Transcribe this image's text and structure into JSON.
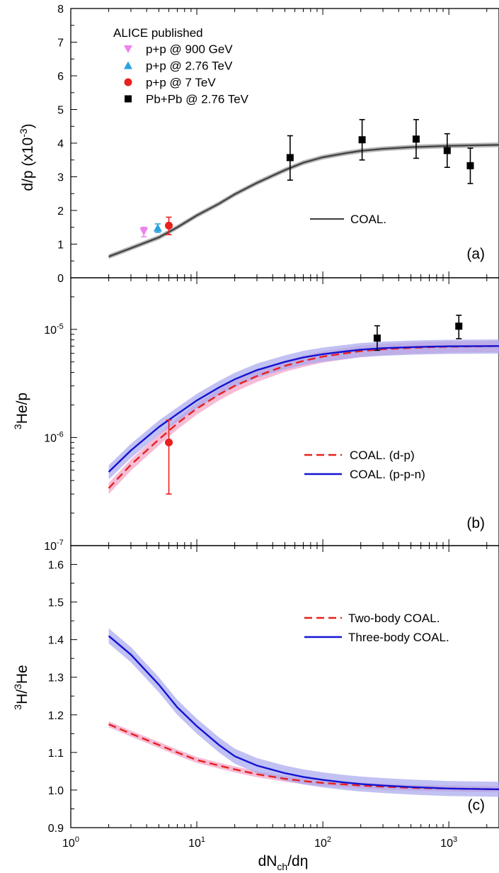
{
  "figure": {
    "xlabel": "dN_ch/dη",
    "xlabel_main": "dN",
    "xlabel_sub": "ch",
    "xlabel_tail": "/dη"
  },
  "chart_data": [
    {
      "type": "line",
      "panel": "(a)",
      "ylabel": "d/p  (x10^-3)",
      "ylabel_main": "d/p  (x10",
      "ylabel_sup": "-3",
      "ylabel_tail": ")",
      "x_scale": "log",
      "xlim": [
        1,
        2500
      ],
      "ylim": [
        0,
        8
      ],
      "y_scale": "linear",
      "yticks": [
        "0",
        "1",
        "2",
        "3",
        "4",
        "5",
        "6",
        "7",
        "8"
      ],
      "legend_title": "ALICE published",
      "legend_placement": "top-left",
      "series": [
        {
          "name": "p+p @ 900 GeV",
          "kind": "points",
          "marker": "triangle-down",
          "color": "#ee82ee",
          "points": [
            {
              "x": 3.8,
              "y": 1.38,
              "ylo": 1.22,
              "yhi": 1.5
            }
          ]
        },
        {
          "name": "p+p @ 2.76 TeV",
          "kind": "points",
          "marker": "triangle-up",
          "color": "#29a3e0",
          "points": [
            {
              "x": 4.9,
              "y": 1.48,
              "ylo": 1.35,
              "yhi": 1.6
            }
          ]
        },
        {
          "name": "p+p @ 7 TeV",
          "kind": "points",
          "marker": "circle",
          "color": "#e8201e",
          "points": [
            {
              "x": 6.0,
              "y": 1.55,
              "ylo": 1.28,
              "yhi": 1.8
            }
          ]
        },
        {
          "name": "Pb+Pb @ 2.76 TeV",
          "kind": "points",
          "marker": "square",
          "color": "#000000",
          "points": [
            {
              "x": 55,
              "y": 3.57,
              "ylo": 2.9,
              "yhi": 4.22
            },
            {
              "x": 205,
              "y": 4.1,
              "ylo": 3.5,
              "yhi": 4.7
            },
            {
              "x": 550,
              "y": 4.12,
              "ylo": 3.55,
              "yhi": 4.7
            },
            {
              "x": 970,
              "y": 3.78,
              "ylo": 3.28,
              "yhi": 4.28
            },
            {
              "x": 1480,
              "y": 3.33,
              "ylo": 2.8,
              "yhi": 3.85
            }
          ]
        },
        {
          "name": "COAL.",
          "kind": "line",
          "color": "#444444",
          "dash": "solid",
          "band_color": "#9a9a9a",
          "band": 0.07,
          "points": [
            [
              2,
              0.63
            ],
            [
              3,
              0.88
            ],
            [
              5,
              1.2
            ],
            [
              7,
              1.5
            ],
            [
              10,
              1.85
            ],
            [
              15,
              2.2
            ],
            [
              20,
              2.48
            ],
            [
              30,
              2.82
            ],
            [
              50,
              3.2
            ],
            [
              70,
              3.42
            ],
            [
              100,
              3.58
            ],
            [
              150,
              3.7
            ],
            [
              200,
              3.77
            ],
            [
              300,
              3.83
            ],
            [
              500,
              3.88
            ],
            [
              700,
              3.9
            ],
            [
              1000,
              3.92
            ],
            [
              2500,
              3.95
            ]
          ]
        }
      ],
      "legend_lines": [
        "COAL."
      ]
    },
    {
      "type": "line",
      "panel": "(b)",
      "ylabel": "3He/p",
      "ylabel_sup": "3",
      "ylabel_main": "He/p",
      "x_scale": "log",
      "xlim": [
        1,
        2500
      ],
      "y_scale": "log",
      "ylim": [
        1e-07,
        3e-05
      ],
      "ytick_values": [
        1e-07,
        1e-06,
        1e-05
      ],
      "ytick_base": "10",
      "ytick_exps": [
        "-7",
        "-6",
        "-5"
      ],
      "series": [
        {
          "name": "COAL. (d-p)",
          "kind": "line",
          "color": "#e8201e",
          "dash": "dashed",
          "band_color": "#f2a0c4",
          "band": 0.12,
          "points": [
            [
              2,
              3.4e-07
            ],
            [
              3,
              5.6e-07
            ],
            [
              5,
              9.6e-07
            ],
            [
              7,
              1.35e-06
            ],
            [
              10,
              1.85e-06
            ],
            [
              15,
              2.5e-06
            ],
            [
              20,
              3e-06
            ],
            [
              30,
              3.7e-06
            ],
            [
              50,
              4.6e-06
            ],
            [
              70,
              5.1e-06
            ],
            [
              100,
              5.6e-06
            ],
            [
              150,
              6e-06
            ],
            [
              200,
              6.3e-06
            ],
            [
              300,
              6.55e-06
            ],
            [
              500,
              6.75e-06
            ],
            [
              700,
              6.85e-06
            ],
            [
              1000,
              6.92e-06
            ],
            [
              2500,
              7e-06
            ]
          ]
        },
        {
          "name": "COAL. (p-p-n)",
          "kind": "line",
          "color": "#1414d2",
          "dash": "solid",
          "band_color": "#a7a7ee",
          "band": 0.15,
          "points": [
            [
              2,
              4.8e-07
            ],
            [
              3,
              7.6e-07
            ],
            [
              5,
              1.25e-06
            ],
            [
              7,
              1.65e-06
            ],
            [
              10,
              2.2e-06
            ],
            [
              15,
              2.9e-06
            ],
            [
              20,
              3.45e-06
            ],
            [
              30,
              4.2e-06
            ],
            [
              50,
              5e-06
            ],
            [
              70,
              5.5e-06
            ],
            [
              100,
              5.9e-06
            ],
            [
              150,
              6.25e-06
            ],
            [
              200,
              6.5e-06
            ],
            [
              300,
              6.7e-06
            ],
            [
              500,
              6.85e-06
            ],
            [
              700,
              6.92e-06
            ],
            [
              1000,
              6.97e-06
            ],
            [
              2500,
              7.02e-06
            ]
          ]
        },
        {
          "name": "p+p @ 7 TeV",
          "kind": "points",
          "marker": "circle",
          "color": "#e8201e",
          "points": [
            {
              "x": 6.0,
              "y": 9e-07,
              "ylo": 3e-07,
              "yhi": 1.45e-06
            }
          ]
        },
        {
          "name": "Pb+Pb @ 2.76 TeV",
          "kind": "points",
          "marker": "square",
          "color": "#000000",
          "points": [
            {
              "x": 270,
              "y": 8.3e-06,
              "ylo": 6.4e-06,
              "yhi": 1.08e-05
            },
            {
              "x": 1200,
              "y": 1.07e-05,
              "ylo": 8.2e-06,
              "yhi": 1.35e-05
            }
          ]
        }
      ],
      "legend_lines": [
        "COAL. (d-p)",
        "COAL. (p-p-n)"
      ]
    },
    {
      "type": "line",
      "panel": "(c)",
      "ylabel": "3H/3He",
      "ylabel_sup1": "3",
      "ylabel_mid": "H/",
      "ylabel_sup2": "3",
      "ylabel_tail": "He",
      "x_scale": "log",
      "xlim": [
        1,
        2500
      ],
      "y_scale": "linear",
      "ylim": [
        0.9,
        1.65
      ],
      "yticks": [
        "0.9",
        "1.0",
        "1.1",
        "1.2",
        "1.3",
        "1.4",
        "1.5",
        "1.6"
      ],
      "xtick_values": [
        1,
        10,
        100,
        1000
      ],
      "xtick_base": "10",
      "xtick_exps": [
        "0",
        "1",
        "2",
        "3"
      ],
      "series": [
        {
          "name": "Two-body COAL.",
          "kind": "line",
          "color": "#e8201e",
          "dash": "dashed",
          "band_color": "#f2a0c4",
          "band": 0.008,
          "points": [
            [
              2,
              1.175
            ],
            [
              3,
              1.15
            ],
            [
              5,
              1.12
            ],
            [
              7,
              1.1
            ],
            [
              10,
              1.08
            ],
            [
              15,
              1.065
            ],
            [
              20,
              1.055
            ],
            [
              30,
              1.042
            ],
            [
              50,
              1.03
            ],
            [
              70,
              1.024
            ],
            [
              100,
              1.019
            ],
            [
              150,
              1.015
            ],
            [
              200,
              1.012
            ],
            [
              300,
              1.009
            ],
            [
              500,
              1.006
            ],
            [
              700,
              1.005
            ],
            [
              1000,
              1.004
            ],
            [
              2500,
              1.002
            ]
          ]
        },
        {
          "name": "Three-body COAL.",
          "kind": "line",
          "color": "#1414d2",
          "dash": "solid",
          "band_color": "#a7a7ee",
          "band": 0.02,
          "points": [
            [
              2,
              1.41
            ],
            [
              3,
              1.36
            ],
            [
              5,
              1.28
            ],
            [
              7,
              1.22
            ],
            [
              10,
              1.17
            ],
            [
              15,
              1.12
            ],
            [
              20,
              1.09
            ],
            [
              30,
              1.065
            ],
            [
              50,
              1.045
            ],
            [
              70,
              1.035
            ],
            [
              100,
              1.027
            ],
            [
              150,
              1.02
            ],
            [
              200,
              1.016
            ],
            [
              300,
              1.012
            ],
            [
              500,
              1.008
            ],
            [
              700,
              1.006
            ],
            [
              1000,
              1.004
            ],
            [
              2500,
              1.002
            ]
          ]
        }
      ],
      "legend_lines": [
        "Two-body COAL.",
        "Three-body COAL."
      ]
    }
  ]
}
